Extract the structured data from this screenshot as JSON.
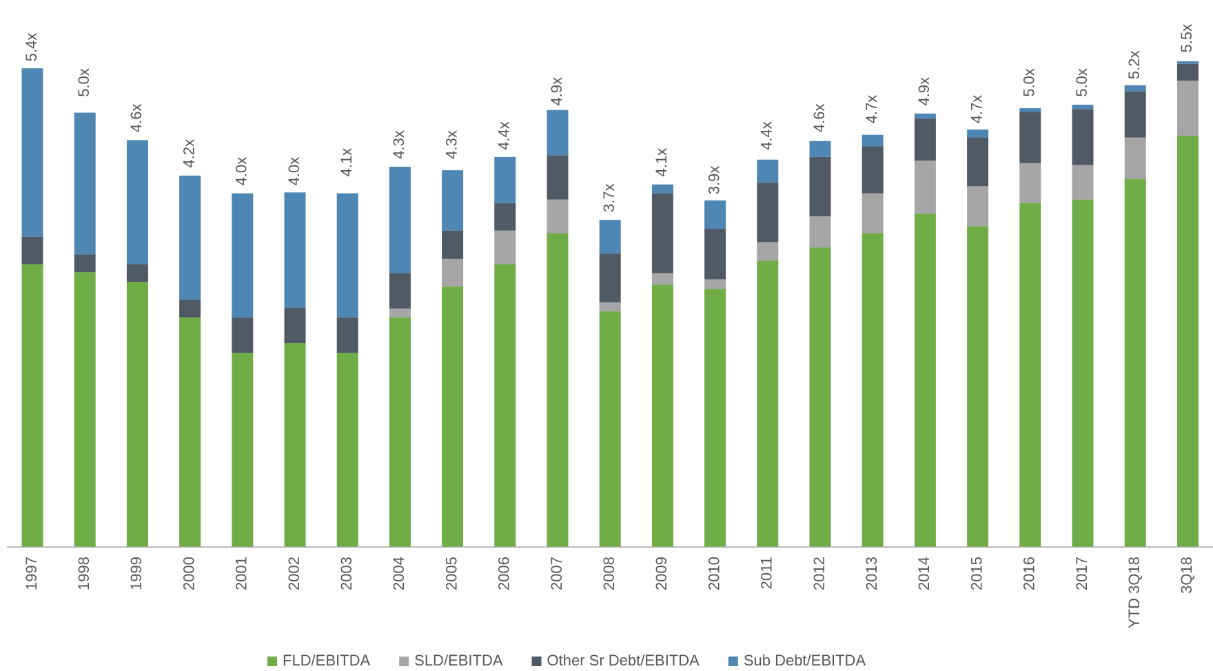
{
  "chart_data": {
    "type": "stacked_bar",
    "categories": [
      "1997",
      "1998",
      "1999",
      "2000",
      "2001",
      "2002",
      "2003",
      "2004",
      "2005",
      "2006",
      "2007",
      "2008",
      "2009",
      "2010",
      "2011",
      "2012",
      "2013",
      "2014",
      "2015",
      "2016",
      "2017",
      "YTD 3Q18",
      "3Q18"
    ],
    "series": [
      {
        "name": "FLD/EBITDA",
        "color": "#70ad47",
        "values": [
          3.19,
          3.1,
          2.99,
          2.59,
          2.19,
          2.3,
          2.19,
          2.59,
          2.94,
          3.19,
          3.54,
          2.66,
          2.96,
          2.91,
          3.23,
          3.38,
          3.54,
          3.76,
          3.62,
          3.88,
          3.92,
          4.15,
          4.64
        ]
      },
      {
        "name": "SLD/EBITDA",
        "color": "#a6a6a6",
        "values": [
          0,
          0,
          0,
          0,
          0,
          0,
          0,
          0.1,
          0.31,
          0.38,
          0.38,
          0.1,
          0.13,
          0.11,
          0.21,
          0.35,
          0.45,
          0.6,
          0.45,
          0.45,
          0.39,
          0.47,
          0.62
        ]
      },
      {
        "name": "Other Sr Debt/EBITDA",
        "color": "#505a64",
        "values": [
          0.31,
          0.2,
          0.2,
          0.2,
          0.4,
          0.4,
          0.4,
          0.4,
          0.32,
          0.31,
          0.5,
          0.55,
          0.9,
          0.57,
          0.67,
          0.67,
          0.53,
          0.47,
          0.55,
          0.58,
          0.63,
          0.52,
          0.19
        ]
      },
      {
        "name": "Sub Debt/EBITDA",
        "color": "#4e87b4",
        "values": [
          1.9,
          1.6,
          1.4,
          1.4,
          1.4,
          1.3,
          1.4,
          1.2,
          0.68,
          0.52,
          0.51,
          0.38,
          0.1,
          0.32,
          0.26,
          0.18,
          0.13,
          0.06,
          0.09,
          0.04,
          0.05,
          0.07,
          0.03
        ]
      }
    ],
    "totals": {
      "values": [
        5.4,
        5.0,
        4.6,
        4.2,
        4.0,
        4.0,
        4.1,
        4.3,
        4.3,
        4.4,
        4.9,
        3.7,
        4.1,
        3.9,
        4.4,
        4.6,
        4.7,
        4.9,
        4.7,
        5.0,
        5.0,
        5.2,
        5.5
      ],
      "value_labels": [
        "5.4x",
        "5.0x",
        "4.6x",
        "4.2x",
        "4.0x",
        "4.0x",
        "4.1x",
        "4.3x",
        "4.3x",
        "4.4x",
        "4.9x",
        "3.7x",
        "4.1x",
        "3.9x",
        "4.4x",
        "4.6x",
        "4.7x",
        "4.9x",
        "4.7x",
        "5.0x",
        "5.0x",
        "5.2x",
        "5.5x"
      ]
    },
    "ylim": [
      0,
      6
    ]
  }
}
